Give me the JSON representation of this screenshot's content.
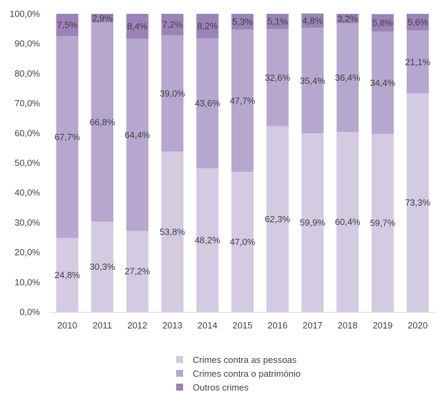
{
  "chart_data": {
    "type": "bar",
    "stacked": true,
    "normalized": true,
    "categories": [
      "2010",
      "2011",
      "2012",
      "2013",
      "2014",
      "2015",
      "2016",
      "2017",
      "2018",
      "2019",
      "2020"
    ],
    "series": [
      {
        "name": "Crimes contra as pessoas",
        "values": [
          24.8,
          30.3,
          27.2,
          53.8,
          48.2,
          47.0,
          62.3,
          59.9,
          60.4,
          59.7,
          73.3
        ],
        "labels": [
          "24,8%",
          "30,3%",
          "27,2%",
          "53,8%",
          "48,2%",
          "47,0%",
          "62,3%",
          "59,9%",
          "60,4%",
          "59,7%",
          "73,3%"
        ],
        "color": "#d4cae1"
      },
      {
        "name": "Crimes contra o património",
        "values": [
          67.7,
          66.8,
          64.4,
          39.0,
          43.6,
          47.7,
          32.6,
          35.4,
          36.4,
          34.4,
          21.1
        ],
        "labels": [
          "67,7%",
          "66,8%",
          "64,4%",
          "39,0%",
          "43,6%",
          "47,7%",
          "32,6%",
          "35,4%",
          "36,4%",
          "34,4%",
          "21,1%"
        ],
        "color": "#b6a7cf"
      },
      {
        "name": "Outros crimes",
        "values": [
          7.5,
          2.9,
          8.4,
          7.2,
          8.2,
          5.3,
          5.1,
          4.8,
          3.2,
          5.8,
          5.6
        ],
        "labels": [
          "7,5%",
          "2,9%",
          "8,4%",
          "7,2%",
          "8,2%",
          "5,3%",
          "5,1%",
          "4,8%",
          "3,2%",
          "5,8%",
          "5,6%"
        ],
        "color": "#9b83b8"
      }
    ],
    "ylim": [
      0,
      100
    ],
    "yticks": [
      0,
      10,
      20,
      30,
      40,
      50,
      60,
      70,
      80,
      90,
      100
    ],
    "ytick_labels": [
      "0,0%",
      "10,0%",
      "20,0%",
      "30,0%",
      "40,0%",
      "50,0%",
      "60,0%",
      "70,0%",
      "80,0%",
      "90,0%",
      "100,0%"
    ],
    "title": "",
    "xlabel": "",
    "ylabel": "",
    "legend_position": "bottom",
    "grid": false
  }
}
